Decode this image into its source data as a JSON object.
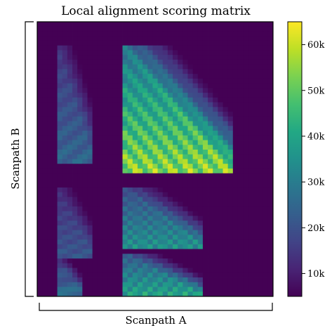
{
  "chart_data": {
    "type": "heatmap",
    "title": "Local alignment scoring matrix",
    "xlabel": "Scanpath A",
    "ylabel": "Scanpath B",
    "colormap": "viridis",
    "colorbar": {
      "range": [
        5000,
        65000
      ],
      "ticks": [
        10000,
        20000,
        30000,
        40000,
        50000,
        60000
      ],
      "tick_labels": [
        "10k",
        "20k",
        "30k",
        "40k",
        "50k",
        "60k"
      ]
    },
    "grid": "off",
    "matrix_shape": [
      58,
      47
    ],
    "value_description_blocks": [
      {
        "x_range": [
          0.08,
          0.24
        ],
        "y_range": [
          0.08,
          0.52
        ],
        "peak": 28000
      },
      {
        "x_range": [
          0.36,
          0.82
        ],
        "y_range": [
          0.08,
          0.56
        ],
        "peak": 64000
      },
      {
        "x_range": [
          0.08,
          0.24
        ],
        "y_range": [
          0.6,
          0.86
        ],
        "peak": 24000
      },
      {
        "x_range": [
          0.36,
          0.7
        ],
        "y_range": [
          0.6,
          0.82
        ],
        "peak": 40000
      },
      {
        "x_range": [
          0.08,
          0.2
        ],
        "y_range": [
          0.86,
          1.0
        ],
        "peak": 30000
      },
      {
        "x_range": [
          0.36,
          0.7
        ],
        "y_range": [
          0.84,
          1.0
        ],
        "peak": 46000
      }
    ]
  }
}
